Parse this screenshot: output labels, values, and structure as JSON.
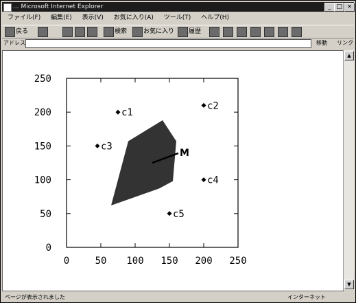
{
  "window": {
    "title": "... Microsoft Internet Explorer"
  },
  "menu": [
    "ファイル(F)",
    "編集(E)",
    "表示(V)",
    "お気に入り(A)",
    "ツール(T)",
    "ヘルプ(H)"
  ],
  "toolbar": {
    "back": "戻る",
    "search": "検索",
    "favorites": "お気に入り",
    "history": "履歴"
  },
  "address": {
    "label": "アドレス(D)",
    "go": "移動",
    "links": "リンク"
  },
  "status": {
    "text": "ページが表示されました",
    "zone": "インターネット"
  },
  "chart_data": {
    "type": "scatter",
    "xlim": [
      0,
      250
    ],
    "ylim": [
      0,
      250
    ],
    "xticks": [
      "0",
      "50",
      "100",
      "150",
      "200",
      "250"
    ],
    "yticks": [
      "0",
      "50",
      "100",
      "150",
      "200",
      "250"
    ],
    "points": [
      {
        "label": "c1",
        "x": 75,
        "y": 200
      },
      {
        "label": "c2",
        "x": 200,
        "y": 210
      },
      {
        "label": "c3",
        "x": 45,
        "y": 150
      },
      {
        "label": "c4",
        "x": 200,
        "y": 100
      },
      {
        "label": "c5",
        "x": 150,
        "y": 50
      }
    ],
    "region": {
      "polygon": [
        [
          65,
          62
        ],
        [
          90,
          157
        ],
        [
          140,
          188
        ],
        [
          160,
          157
        ],
        [
          155,
          98
        ],
        [
          135,
          87
        ]
      ]
    },
    "marker": {
      "label": "M",
      "x": 125,
      "y": 125
    }
  }
}
